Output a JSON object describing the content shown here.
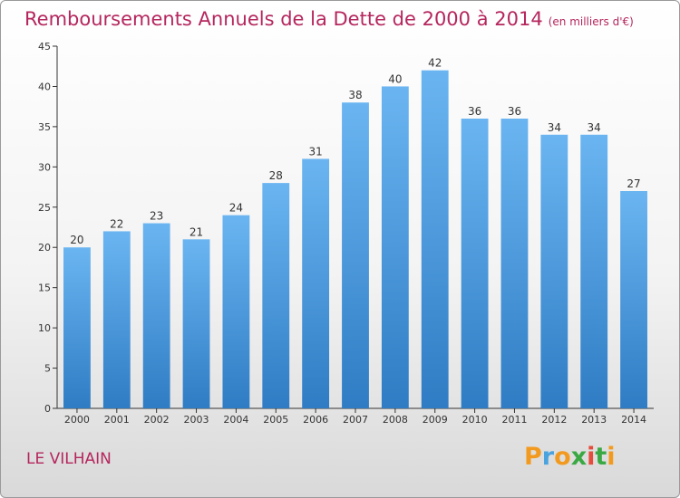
{
  "chart_data": {
    "type": "bar",
    "title": "Remboursements Annuels de la Dette de 2000 à 2014",
    "unit": "(en milliers d'€)",
    "categories": [
      "2000",
      "2001",
      "2002",
      "2003",
      "2004",
      "2005",
      "2006",
      "2007",
      "2008",
      "2009",
      "2010",
      "2011",
      "2012",
      "2013",
      "2014"
    ],
    "values": [
      20,
      22,
      23,
      21,
      24,
      28,
      31,
      38,
      40,
      42,
      36,
      36,
      34,
      34,
      27
    ],
    "ylim": [
      0,
      45
    ],
    "yticks": [
      0,
      5,
      10,
      15,
      20,
      25,
      30,
      35,
      40,
      45
    ],
    "xlabel": "",
    "ylabel": "",
    "grid": false,
    "bar_color_top": "#6ab5f1",
    "bar_color_bottom": "#2f7cc4"
  },
  "commune": "LE VILHAIN",
  "brand": {
    "letters": [
      "P",
      "r",
      "o",
      "x",
      "i",
      "t",
      "i"
    ],
    "colors": [
      "#f29a1f",
      "#4aa3df",
      "#f29a1f",
      "#3aa843",
      "#e64b3c",
      "#3aa843",
      "#f29a1f"
    ]
  },
  "colors": {
    "title": "#b5265d"
  }
}
